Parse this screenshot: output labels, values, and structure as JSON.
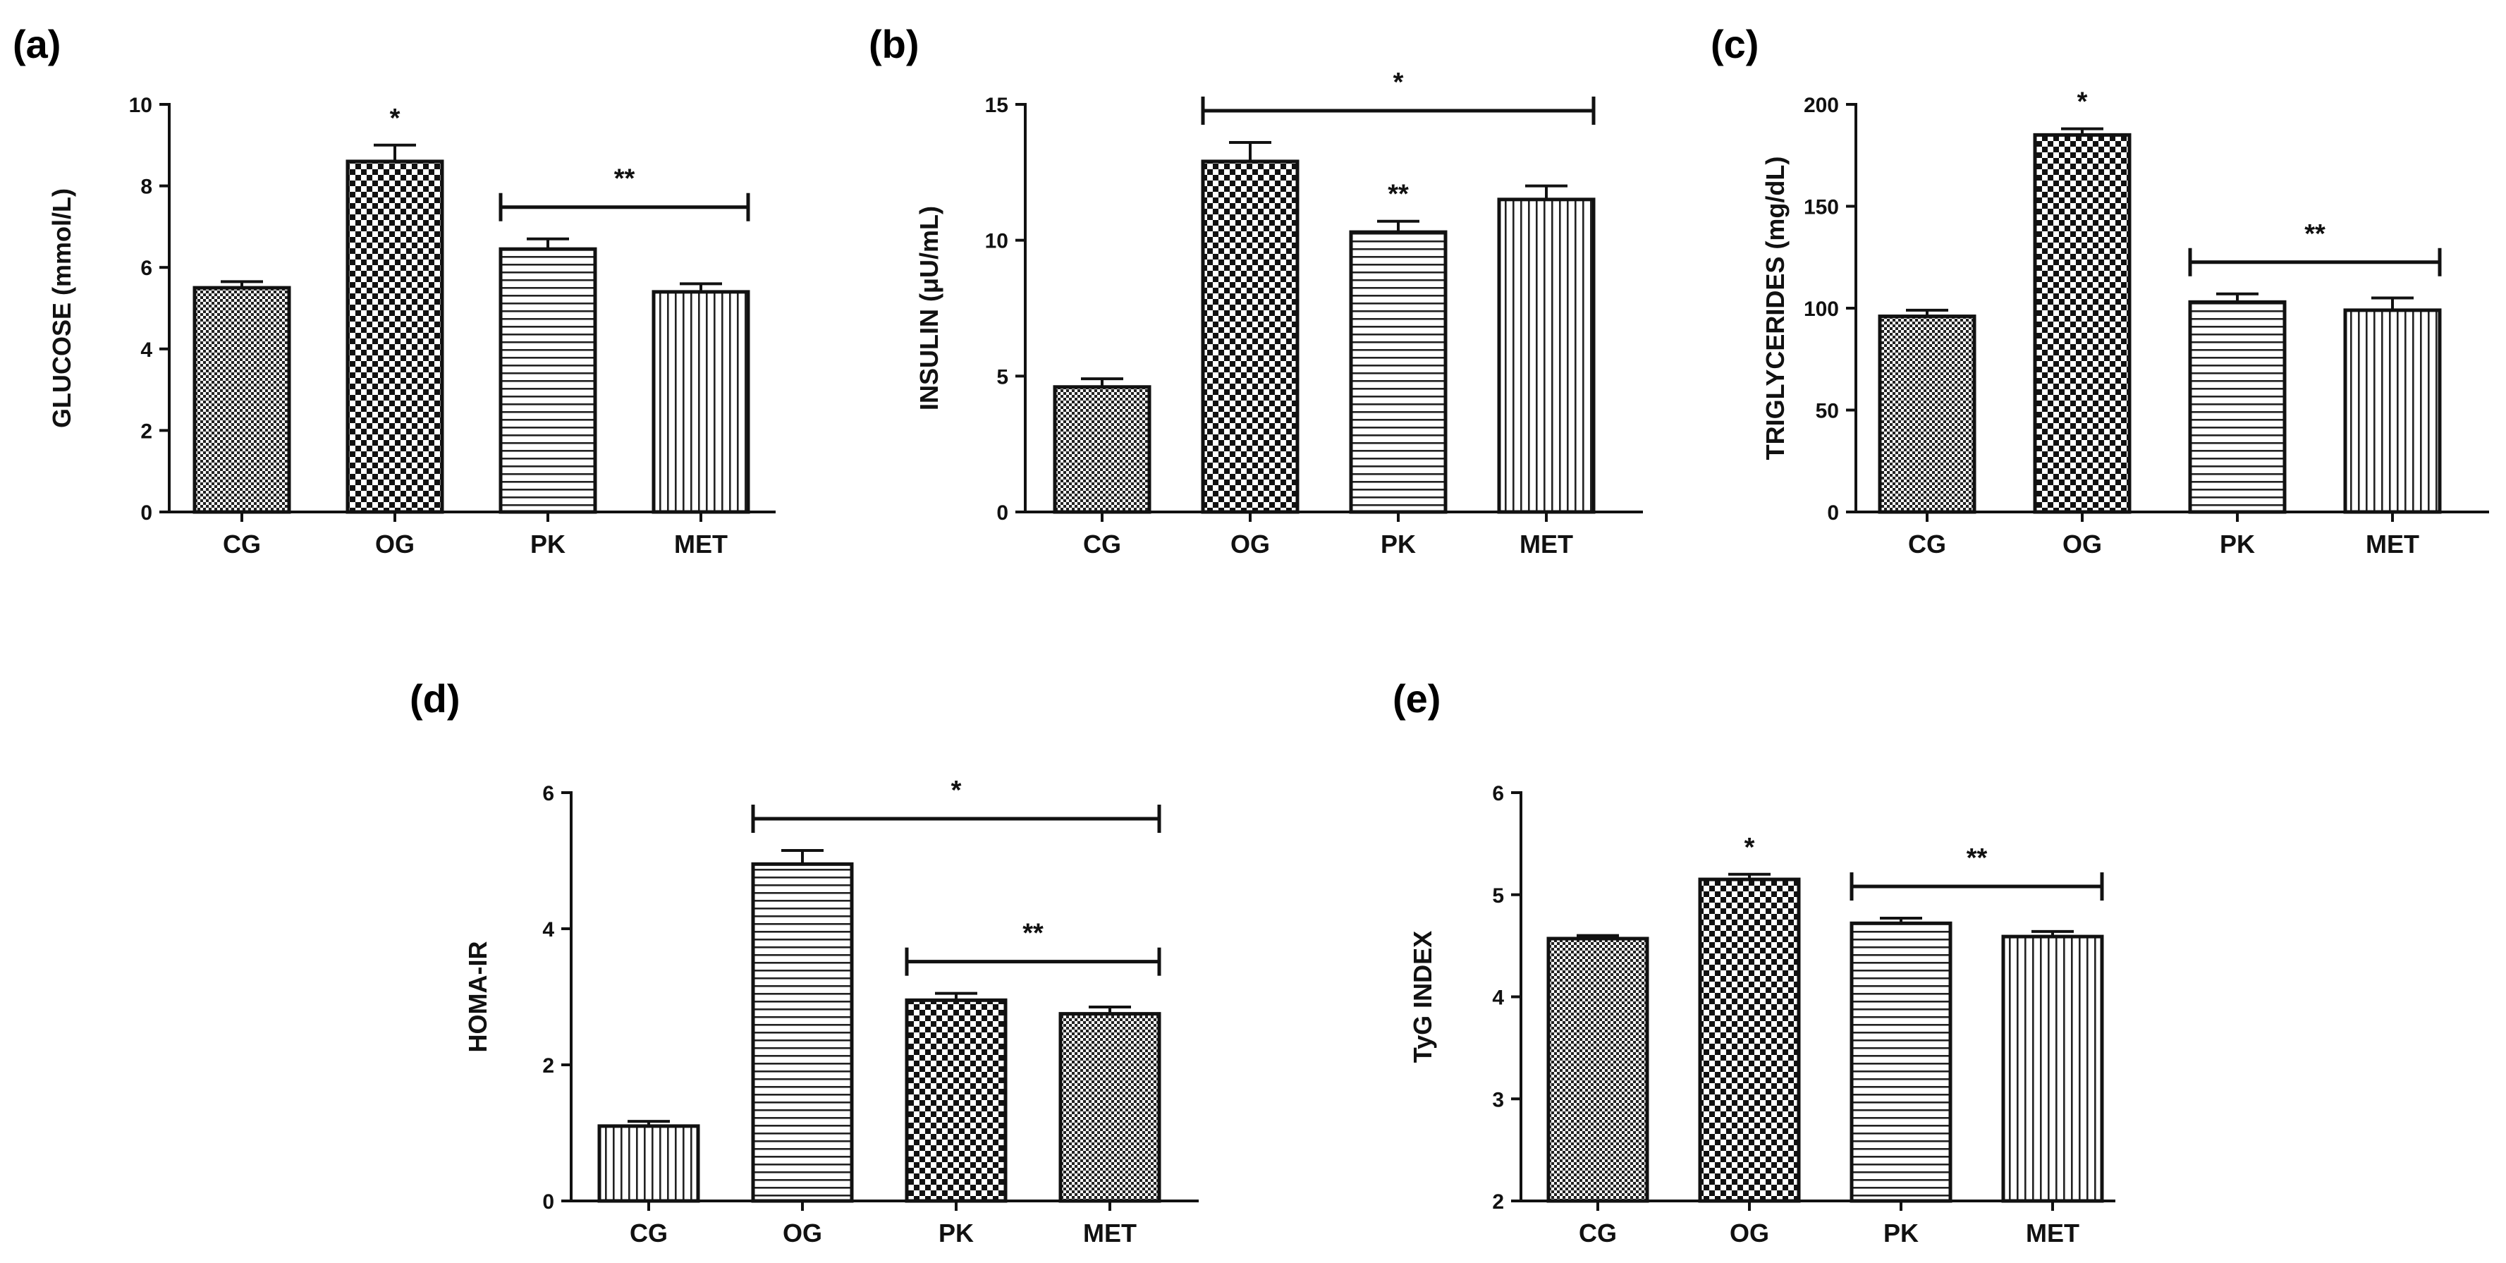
{
  "figure": {
    "background": "#ffffff",
    "ink": "#111111"
  },
  "chart_data": [
    {
      "panel": "(a)",
      "type": "bar",
      "ylabel": "GLUCOSE (mmol/L)",
      "categories": [
        "CG",
        "OG",
        "PK",
        "MET"
      ],
      "values": [
        5.5,
        8.6,
        6.45,
        5.4
      ],
      "errors": [
        0.15,
        0.4,
        0.25,
        0.2
      ],
      "patterns": [
        "fine-check",
        "coarse-check",
        "horizontal",
        "vertical"
      ],
      "ylim": [
        0,
        10
      ],
      "yticks": [
        0,
        2,
        4,
        6,
        8,
        10
      ],
      "yticklabels": [
        "0",
        "2",
        "4",
        "6",
        "8",
        "10"
      ],
      "annotations": [
        {
          "text": "*",
          "bars": [
            1
          ]
        },
        {
          "text": "**",
          "bars": [
            2,
            3
          ],
          "line": true
        }
      ]
    },
    {
      "panel": "(b)",
      "type": "bar",
      "ylabel": "INSULIN (μU/mL)",
      "categories": [
        "CG",
        "OG",
        "PK",
        "MET"
      ],
      "values": [
        4.6,
        12.9,
        10.3,
        11.5
      ],
      "errors": [
        0.3,
        0.7,
        0.4,
        0.5
      ],
      "patterns": [
        "fine-check",
        "coarse-check",
        "horizontal",
        "vertical"
      ],
      "ylim": [
        0,
        15
      ],
      "yticks": [
        0,
        5,
        10,
        15
      ],
      "yticklabels": [
        "0",
        "5",
        "10",
        "15"
      ],
      "annotations": [
        {
          "text": "*",
          "bars": [
            1,
            3
          ],
          "line": true
        },
        {
          "text": "**",
          "bars": [
            2
          ]
        }
      ]
    },
    {
      "panel": "(c)",
      "type": "bar",
      "ylabel": "TRIGLYCERIDES (mg/dL)",
      "categories": [
        "CG",
        "OG",
        "PK",
        "MET"
      ],
      "values": [
        96,
        185,
        103,
        99
      ],
      "errors": [
        3,
        3,
        4,
        6
      ],
      "patterns": [
        "fine-check",
        "coarse-check",
        "horizontal",
        "vertical"
      ],
      "ylim": [
        0,
        200
      ],
      "yticks": [
        0,
        50,
        100,
        150,
        200
      ],
      "yticklabels": [
        "0",
        "50",
        "100",
        "150",
        "200"
      ],
      "annotations": [
        {
          "text": "*",
          "bars": [
            1
          ]
        },
        {
          "text": "**",
          "bars": [
            2,
            3
          ],
          "line": true
        }
      ]
    },
    {
      "panel": "(d)",
      "type": "bar",
      "ylabel": "HOMA-IR",
      "categories": [
        "CG",
        "OG",
        "PK",
        "MET"
      ],
      "values": [
        1.1,
        4.95,
        2.95,
        2.75
      ],
      "errors": [
        0.07,
        0.2,
        0.1,
        0.1
      ],
      "patterns": [
        "vertical",
        "horizontal",
        "coarse-check",
        "fine-check"
      ],
      "ylim": [
        0,
        6
      ],
      "yticks": [
        0,
        2,
        4,
        6
      ],
      "yticklabels": [
        "0",
        "2",
        "4",
        "6"
      ],
      "annotations": [
        {
          "text": "*",
          "bars": [
            1,
            3
          ],
          "line": true
        },
        {
          "text": "**",
          "bars": [
            2,
            3
          ],
          "line": true
        }
      ]
    },
    {
      "panel": "(e)",
      "type": "bar",
      "ylabel": "TyG INDEX",
      "categories": [
        "CG",
        "OG",
        "PK",
        "MET"
      ],
      "values": [
        4.57,
        5.15,
        4.72,
        4.59
      ],
      "errors": [
        0.03,
        0.05,
        0.05,
        0.05
      ],
      "patterns": [
        "fine-check",
        "coarse-check",
        "horizontal",
        "vertical"
      ],
      "ylim": [
        2,
        6
      ],
      "yticks": [
        2,
        3,
        4,
        5,
        6
      ],
      "yticklabels": [
        "2",
        "3",
        "4",
        "5",
        "6"
      ],
      "annotations": [
        {
          "text": "*",
          "bars": [
            1
          ]
        },
        {
          "text": "**",
          "bars": [
            2,
            3
          ],
          "line": true
        }
      ]
    }
  ]
}
